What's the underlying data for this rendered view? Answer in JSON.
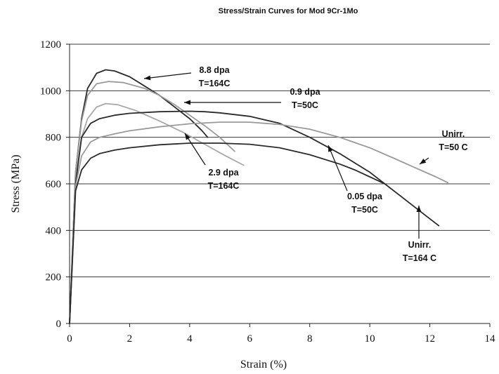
{
  "chart_data": {
    "type": "line",
    "title": "Stress/Strain Curves for Mod 9Cr-1Mo",
    "xlabel": "Strain (%)",
    "ylabel": "Stress (MPa)",
    "xlim": [
      0,
      14
    ],
    "ylim": [
      0,
      1200
    ],
    "xticks": [
      "0",
      "2",
      "4",
      "6",
      "8",
      "10",
      "12",
      "14"
    ],
    "yticks": [
      "0",
      "200",
      "400",
      "600",
      "800",
      "1000",
      "1200"
    ],
    "grid": "horizontal",
    "series": [
      {
        "name": "8.8 dpa T=164C",
        "color": "#2a2a2a",
        "x": [
          0,
          0.2,
          0.4,
          0.6,
          0.9,
          1.2,
          1.5,
          2,
          2.5,
          3,
          3.5,
          4,
          4.4,
          4.6
        ],
        "y": [
          0,
          650,
          880,
          1010,
          1075,
          1090,
          1085,
          1060,
          1020,
          980,
          930,
          880,
          830,
          800
        ]
      },
      {
        "name": "",
        "color": "#9a9a9a",
        "x": [
          0,
          0.2,
          0.4,
          0.6,
          0.9,
          1.3,
          1.8,
          2.5,
          3,
          3.5,
          4,
          4.5,
          5,
          5.5
        ],
        "y": [
          0,
          650,
          870,
          980,
          1030,
          1040,
          1035,
          1010,
          980,
          940,
          895,
          850,
          800,
          740
        ]
      },
      {
        "name": "2.9 dpa T=164C",
        "color": "#a8a8a8",
        "x": [
          0,
          0.2,
          0.4,
          0.6,
          0.9,
          1.2,
          1.6,
          2.2,
          3,
          3.8,
          4.5,
          5.2,
          5.8
        ],
        "y": [
          0,
          620,
          800,
          880,
          930,
          945,
          940,
          915,
          870,
          820,
          770,
          720,
          680
        ]
      },
      {
        "name": "0.9 dpa T=50C",
        "color": "#2a2a2a",
        "x": [
          0,
          0.2,
          0.4,
          0.7,
          1,
          1.5,
          2,
          3,
          4,
          4.5,
          5,
          6,
          7,
          8,
          9,
          10,
          10.5,
          11,
          11.5,
          12,
          12.3
        ],
        "y": [
          0,
          600,
          800,
          860,
          880,
          895,
          903,
          910,
          912,
          910,
          905,
          890,
          860,
          800,
          730,
          650,
          600,
          550,
          500,
          450,
          420
        ]
      },
      {
        "name": "Unirr. T=50 C",
        "color": "#9a9a9a",
        "x": [
          0,
          0.2,
          0.4,
          0.7,
          1,
          1.5,
          2,
          3,
          4,
          5,
          6,
          7,
          8,
          9,
          10,
          10.8,
          11.5,
          12.2,
          12.6
        ],
        "y": [
          0,
          590,
          720,
          780,
          800,
          815,
          828,
          845,
          858,
          865,
          865,
          855,
          835,
          800,
          755,
          710,
          670,
          630,
          605
        ]
      },
      {
        "name": "Unirr. T=164 C",
        "color": "#2a2a2a",
        "x": [
          0,
          0.2,
          0.4,
          0.7,
          1,
          1.5,
          2,
          3,
          4,
          5,
          6,
          7,
          8,
          9,
          9.5,
          10,
          10.5
        ],
        "y": [
          0,
          570,
          660,
          710,
          730,
          745,
          755,
          768,
          775,
          775,
          770,
          755,
          725,
          685,
          660,
          630,
          600
        ]
      }
    ],
    "annotations": [
      {
        "text": [
          "8.8 dpa",
          "T=164C"
        ]
      },
      {
        "text": [
          "0.9 dpa",
          "T=50C"
        ]
      },
      {
        "text": [
          "Unirr.",
          "T=50 C"
        ]
      },
      {
        "text": [
          "2.9 dpa",
          "T=164C"
        ]
      },
      {
        "text": [
          "0.05 dpa",
          "T=50C"
        ]
      },
      {
        "text": [
          "Unirr.",
          "T=164 C"
        ]
      }
    ]
  }
}
